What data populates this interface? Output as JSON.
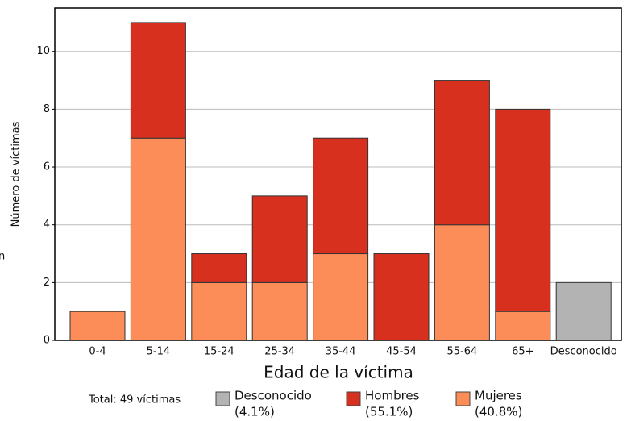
{
  "chart_data": {
    "type": "stacked_bar",
    "y_label": "Número de víctimas",
    "x_label": "Edad de la víctima",
    "legend_title": "Total: 49 víctimas",
    "annotation": "n",
    "categories": [
      "0-4",
      "5-14",
      "15-24",
      "25-34",
      "35-44",
      "45-54",
      "55-64",
      "65+",
      "Desconocido"
    ],
    "series": [
      {
        "name": "Desconocido",
        "share": "(4.1%)",
        "color": "#b3b3b3",
        "values": [
          0,
          0,
          0,
          0,
          0,
          0,
          0,
          0,
          2
        ]
      },
      {
        "name": "Hombres",
        "share": "(55.1%)",
        "color": "#d7301f",
        "values": [
          0,
          4,
          1,
          3,
          4,
          3,
          5,
          7,
          0
        ]
      },
      {
        "name": "Mujeres",
        "share": "(40.8%)",
        "color": "#fc8d59",
        "values": [
          1,
          7,
          2,
          2,
          3,
          0,
          4,
          1,
          0
        ]
      }
    ],
    "ylim": [
      0,
      11.5
    ],
    "yticks": [
      0,
      2,
      4,
      6,
      8,
      10
    ],
    "grid": true
  }
}
